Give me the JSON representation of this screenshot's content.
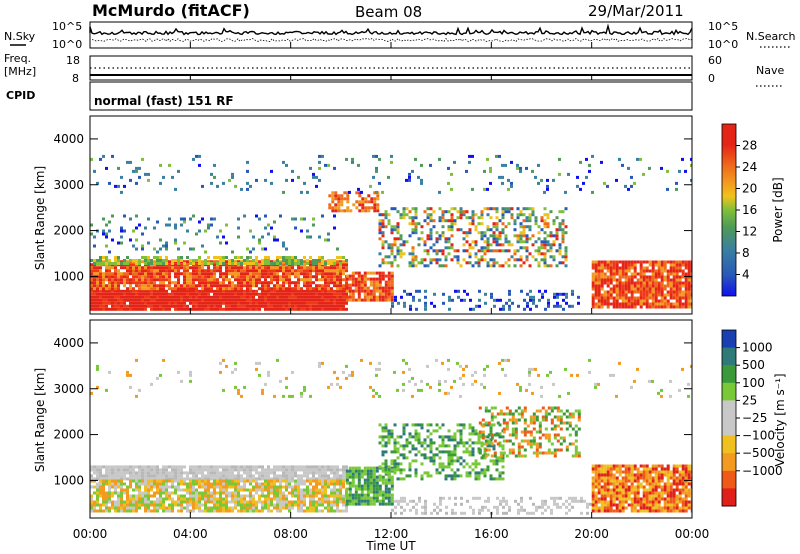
{
  "header": {
    "station": "McMurdo (fitACF)",
    "beam": "Beam 08",
    "date": "29/Mar/2011"
  },
  "noise_panel": {
    "left_label": "N.Sky",
    "right_label": "N.Search",
    "tick_top": "10^5",
    "tick_bottom": "10^0"
  },
  "freq_panel": {
    "left_label_1": "Freq.",
    "left_label_2": "[MHz]",
    "right_label": "Nave",
    "left_ticks": [
      "18",
      "8"
    ],
    "right_ticks": [
      "60",
      "0"
    ]
  },
  "cpid_panel": {
    "label": "CPID",
    "text": "normal (fast) 151 RF"
  },
  "chart_data": [
    {
      "type": "heatmap",
      "title": "Power",
      "ylabel": "Slant Range [km]",
      "xlabel": "",
      "ylim": [
        180,
        4500
      ],
      "yticks": [
        "1000",
        "2000",
        "3000",
        "4000"
      ],
      "colorbar": {
        "label": "Power [dB]",
        "ticks": [
          "4",
          "8",
          "12",
          "16",
          "20",
          "24",
          "28"
        ],
        "colors": [
          "#1010ee",
          "#2858b8",
          "#3a80a0",
          "#4e9a58",
          "#7fbf3a",
          "#f0c21c",
          "#f39a20",
          "#ef6a1a",
          "#e52418"
        ]
      },
      "features": [
        {
          "t": [
            0,
            10
          ],
          "range": [
            300,
            1300
          ],
          "value": "high",
          "colors": "red/orange"
        },
        {
          "t": [
            10,
            12
          ],
          "range": [
            500,
            1100
          ],
          "value": "high",
          "colors": "orange/red"
        },
        {
          "t": [
            12,
            19
          ],
          "range": [
            1200,
            2500
          ],
          "value": "mixed",
          "colors": "green/blue/orange"
        },
        {
          "t": [
            20,
            24
          ],
          "range": [
            300,
            1300
          ],
          "value": "high",
          "colors": "red/orange"
        },
        {
          "t": [
            0,
            24
          ],
          "range": [
            2800,
            3600
          ],
          "value": "low",
          "colors": "blue/green scattered"
        }
      ]
    },
    {
      "type": "heatmap",
      "title": "Velocity",
      "ylabel": "Slant Range [km]",
      "xlabel": "Time UT",
      "ylim": [
        180,
        4500
      ],
      "yticks": [
        "1000",
        "2000",
        "3000",
        "4000"
      ],
      "xticks": [
        "00:00",
        "04:00",
        "08:00",
        "12:00",
        "16:00",
        "20:00",
        "00:00"
      ],
      "colorbar": {
        "label": "Velocity [m s⁻¹]",
        "ticks": [
          "1000",
          "500",
          "100",
          "25",
          "−25",
          "−100",
          "−500",
          "−1000"
        ],
        "colors": [
          "#1a3fb0",
          "#2e7a78",
          "#3a9a3a",
          "#78c838",
          "#c8c8c8",
          "#c8c8c8",
          "#f0c020",
          "#f39a20",
          "#ef5a18",
          "#e0201a"
        ]
      },
      "features": [
        {
          "t": [
            0,
            10
          ],
          "range": [
            300,
            1300
          ],
          "value": "slightly negative",
          "colors": "grey/yellow/orange"
        },
        {
          "t": [
            10,
            12
          ],
          "range": [
            500,
            1300
          ],
          "value": "positive",
          "colors": "green"
        },
        {
          "t": [
            12,
            19
          ],
          "range": [
            1000,
            2600
          ],
          "value": "mixed",
          "colors": "green/orange"
        },
        {
          "t": [
            20,
            24
          ],
          "range": [
            300,
            1300
          ],
          "value": "negative",
          "colors": "orange/red"
        }
      ]
    }
  ]
}
